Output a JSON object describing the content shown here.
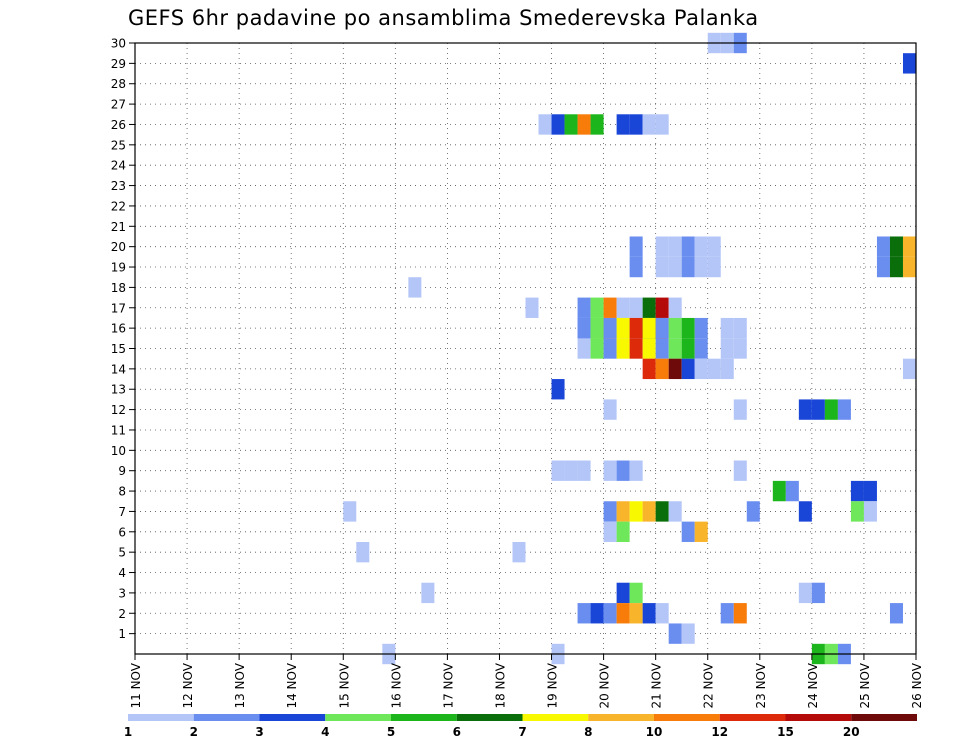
{
  "chart_data": {
    "type": "heatmap",
    "title": "GEFS 6hr padavine po ansamblima Smederevska Palanka",
    "x_start_day": 11,
    "x_end_day": 26,
    "x_tick_labels": [
      "11 NOV",
      "12 NOV",
      "13 NOV",
      "14 NOV",
      "15 NOV",
      "16 NOV",
      "17 NOV",
      "18 NOV",
      "19 NOV",
      "20 NOV",
      "21 NOV",
      "22 NOV",
      "23 NOV",
      "24 NOV",
      "25 NOV",
      "26 NOV"
    ],
    "y_range": [
      0,
      30
    ],
    "y_tick_labels": [
      "1",
      "2",
      "3",
      "4",
      "5",
      "6",
      "7",
      "8",
      "9",
      "10",
      "11",
      "12",
      "13",
      "14",
      "15",
      "16",
      "17",
      "18",
      "19",
      "20",
      "21",
      "22",
      "23",
      "24",
      "25",
      "26",
      "27",
      "28",
      "29",
      "30"
    ],
    "grid": true,
    "legend": {
      "placement": "bottom",
      "colors": [
        "#b4c6f8",
        "#6a8ef0",
        "#1a46d8",
        "#6ee85a",
        "#1cb51c",
        "#0a6e0a",
        "#f8f800",
        "#f8b42a",
        "#f87c0a",
        "#dc2a0a",
        "#b40a0a",
        "#6e0a0a"
      ],
      "labels": [
        "1",
        "2",
        "3",
        "4",
        "5",
        "6",
        "7",
        "8",
        "10",
        "12",
        "15",
        "20"
      ]
    },
    "cells": [
      {
        "day": 22.0,
        "member": 30,
        "level": 0
      },
      {
        "day": 22.25,
        "member": 30,
        "level": 0
      },
      {
        "day": 22.5,
        "member": 30,
        "level": 1
      },
      {
        "day": 25.75,
        "member": 29,
        "level": 2
      },
      {
        "day": 18.75,
        "member": 26,
        "level": 0
      },
      {
        "day": 19.0,
        "member": 26,
        "level": 2
      },
      {
        "day": 19.25,
        "member": 26,
        "level": 4
      },
      {
        "day": 19.5,
        "member": 26,
        "level": 8
      },
      {
        "day": 19.75,
        "member": 26,
        "level": 4
      },
      {
        "day": 20.25,
        "member": 26,
        "level": 2
      },
      {
        "day": 20.5,
        "member": 26,
        "level": 2
      },
      {
        "day": 20.75,
        "member": 26,
        "level": 0
      },
      {
        "day": 21.0,
        "member": 26,
        "level": 0
      },
      {
        "day": 20.5,
        "member": 20,
        "level": 1
      },
      {
        "day": 21.0,
        "member": 20,
        "level": 0
      },
      {
        "day": 21.25,
        "member": 20,
        "level": 0
      },
      {
        "day": 21.5,
        "member": 20,
        "level": 1
      },
      {
        "day": 21.75,
        "member": 20,
        "level": 0
      },
      {
        "day": 22.0,
        "member": 20,
        "level": 0
      },
      {
        "day": 25.25,
        "member": 20,
        "level": 1
      },
      {
        "day": 25.5,
        "member": 20,
        "level": 5
      },
      {
        "day": 25.75,
        "member": 20,
        "level": 7
      },
      {
        "day": 20.5,
        "member": 19,
        "level": 1
      },
      {
        "day": 21.0,
        "member": 19,
        "level": 0
      },
      {
        "day": 21.25,
        "member": 19,
        "level": 0
      },
      {
        "day": 21.5,
        "member": 19,
        "level": 1
      },
      {
        "day": 21.75,
        "member": 19,
        "level": 0
      },
      {
        "day": 22.0,
        "member": 19,
        "level": 0
      },
      {
        "day": 25.25,
        "member": 19,
        "level": 1
      },
      {
        "day": 25.5,
        "member": 19,
        "level": 5
      },
      {
        "day": 25.75,
        "member": 19,
        "level": 7
      },
      {
        "day": 16.25,
        "member": 18,
        "level": 0
      },
      {
        "day": 18.5,
        "member": 17,
        "level": 0
      },
      {
        "day": 19.5,
        "member": 17,
        "level": 1
      },
      {
        "day": 19.75,
        "member": 17,
        "level": 3
      },
      {
        "day": 20.0,
        "member": 17,
        "level": 8
      },
      {
        "day": 20.25,
        "member": 17,
        "level": 0
      },
      {
        "day": 20.5,
        "member": 17,
        "level": 0
      },
      {
        "day": 20.75,
        "member": 17,
        "level": 5
      },
      {
        "day": 21.0,
        "member": 17,
        "level": 10
      },
      {
        "day": 21.25,
        "member": 17,
        "level": 0
      },
      {
        "day": 19.5,
        "member": 16,
        "level": 1
      },
      {
        "day": 19.75,
        "member": 16,
        "level": 3
      },
      {
        "day": 20.0,
        "member": 16,
        "level": 8
      },
      {
        "day": 20.25,
        "member": 16,
        "level": 0
      },
      {
        "day": 20.5,
        "member": 16,
        "level": 0
      },
      {
        "day": 20.75,
        "member": 16,
        "level": 5
      },
      {
        "day": 21.0,
        "member": 16,
        "level": 10
      },
      {
        "day": 21.25,
        "member": 16,
        "level": 0
      },
      {
        "day": 19.5,
        "member": 15,
        "level": 0
      },
      {
        "day": 19.75,
        "member": 15,
        "level": 3
      },
      {
        "day": 20.0,
        "member": 15,
        "level": 1
      },
      {
        "day": 20.25,
        "member": 15,
        "level": 6
      },
      {
        "day": 20.5,
        "member": 15,
        "level": 9
      },
      {
        "day": 20.75,
        "member": 15,
        "level": 6
      },
      {
        "day": 21.0,
        "member": 15,
        "level": 1
      },
      {
        "day": 21.25,
        "member": 15,
        "level": 3
      },
      {
        "day": 21.5,
        "member": 15,
        "level": 4
      },
      {
        "day": 21.75,
        "member": 15,
        "level": 1
      },
      {
        "day": 22.25,
        "member": 15,
        "level": 0
      },
      {
        "day": 22.5,
        "member": 15,
        "level": 0
      },
      {
        "day": 19.5,
        "member": 16.0,
        "level": 1
      },
      {
        "day": 19.75,
        "member": 16.0,
        "level": 3
      },
      {
        "day": 20.0,
        "member": 16.0,
        "level": 1
      },
      {
        "day": 20.25,
        "member": 16.0,
        "level": 6
      },
      {
        "day": 20.5,
        "member": 16.0,
        "level": 9
      },
      {
        "day": 20.75,
        "member": 16.0,
        "level": 6
      },
      {
        "day": 21.0,
        "member": 16.0,
        "level": 1
      },
      {
        "day": 21.25,
        "member": 16.0,
        "level": 3
      },
      {
        "day": 21.5,
        "member": 16.0,
        "level": 4
      },
      {
        "day": 21.75,
        "member": 16.0,
        "level": 1
      },
      {
        "day": 22.25,
        "member": 16.0,
        "level": 0
      },
      {
        "day": 22.5,
        "member": 16.0,
        "level": 0
      },
      {
        "day": 20.75,
        "member": 14,
        "level": 9
      },
      {
        "day": 21.0,
        "member": 14,
        "level": 8
      },
      {
        "day": 21.25,
        "member": 14,
        "level": 11
      },
      {
        "day": 21.5,
        "member": 14,
        "level": 2
      },
      {
        "day": 21.75,
        "member": 14,
        "level": 0
      },
      {
        "day": 22.0,
        "member": 14,
        "level": 0
      },
      {
        "day": 22.25,
        "member": 14,
        "level": 0
      },
      {
        "day": 25.75,
        "member": 14,
        "level": 0
      },
      {
        "day": 19.0,
        "member": 13,
        "level": 2
      },
      {
        "day": 20.0,
        "member": 12,
        "level": 0
      },
      {
        "day": 22.5,
        "member": 12,
        "level": 0
      },
      {
        "day": 23.75,
        "member": 12,
        "level": 2
      },
      {
        "day": 24.0,
        "member": 12,
        "level": 2
      },
      {
        "day": 24.25,
        "member": 12,
        "level": 4
      },
      {
        "day": 24.5,
        "member": 12,
        "level": 1
      },
      {
        "day": 19.0,
        "member": 9,
        "level": 0
      },
      {
        "day": 19.25,
        "member": 9,
        "level": 0
      },
      {
        "day": 19.5,
        "member": 9,
        "level": 0
      },
      {
        "day": 20.0,
        "member": 9,
        "level": 0
      },
      {
        "day": 20.25,
        "member": 9,
        "level": 1
      },
      {
        "day": 20.5,
        "member": 9,
        "level": 0
      },
      {
        "day": 22.5,
        "member": 9,
        "level": 0
      },
      {
        "day": 23.25,
        "member": 8,
        "level": 4
      },
      {
        "day": 23.5,
        "member": 8,
        "level": 1
      },
      {
        "day": 24.75,
        "member": 8,
        "level": 2
      },
      {
        "day": 25.0,
        "member": 8,
        "level": 2
      },
      {
        "day": 15.0,
        "member": 7,
        "level": 0
      },
      {
        "day": 20.0,
        "member": 7,
        "level": 1
      },
      {
        "day": 20.25,
        "member": 7,
        "level": 7
      },
      {
        "day": 20.5,
        "member": 7,
        "level": 6
      },
      {
        "day": 20.75,
        "member": 7,
        "level": 7
      },
      {
        "day": 21.0,
        "member": 7,
        "level": 5
      },
      {
        "day": 21.25,
        "member": 7,
        "level": 0
      },
      {
        "day": 22.75,
        "member": 7,
        "level": 1
      },
      {
        "day": 23.75,
        "member": 7,
        "level": 2
      },
      {
        "day": 24.75,
        "member": 7,
        "level": 3
      },
      {
        "day": 25.0,
        "member": 7,
        "level": 0
      },
      {
        "day": 20.0,
        "member": 6,
        "level": 0
      },
      {
        "day": 20.25,
        "member": 6,
        "level": 3
      },
      {
        "day": 21.5,
        "member": 6,
        "level": 1
      },
      {
        "day": 21.75,
        "member": 6,
        "level": 7
      },
      {
        "day": 15.25,
        "member": 5,
        "level": 0
      },
      {
        "day": 18.25,
        "member": 5,
        "level": 0
      },
      {
        "day": 16.5,
        "member": 3,
        "level": 0
      },
      {
        "day": 20.25,
        "member": 3,
        "level": 2
      },
      {
        "day": 20.5,
        "member": 3,
        "level": 3
      },
      {
        "day": 23.75,
        "member": 3,
        "level": 0
      },
      {
        "day": 24.0,
        "member": 3,
        "level": 1
      },
      {
        "day": 19.5,
        "member": 2,
        "level": 1
      },
      {
        "day": 19.75,
        "member": 2,
        "level": 2
      },
      {
        "day": 20.0,
        "member": 2,
        "level": 1
      },
      {
        "day": 20.25,
        "member": 2,
        "level": 8
      },
      {
        "day": 20.5,
        "member": 2,
        "level": 7
      },
      {
        "day": 20.75,
        "member": 2,
        "level": 2
      },
      {
        "day": 21.0,
        "member": 2,
        "level": 0
      },
      {
        "day": 22.25,
        "member": 2,
        "level": 1
      },
      {
        "day": 22.5,
        "member": 2,
        "level": 8
      },
      {
        "day": 25.5,
        "member": 2,
        "level": 1
      },
      {
        "day": 21.25,
        "member": 1,
        "level": 1
      },
      {
        "day": 21.5,
        "member": 1,
        "level": 0
      },
      {
        "day": 15.75,
        "member": 0,
        "level": 0
      },
      {
        "day": 19.0,
        "member": 0,
        "level": 0
      },
      {
        "day": 24.0,
        "member": 0,
        "level": 4
      },
      {
        "day": 24.25,
        "member": 0,
        "level": 3
      },
      {
        "day": 24.5,
        "member": 0,
        "level": 1
      }
    ]
  }
}
